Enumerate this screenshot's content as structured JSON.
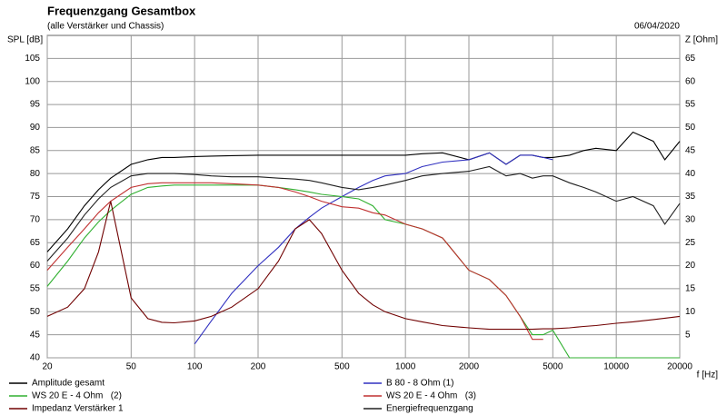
{
  "chart_data": {
    "type": "line",
    "title": "Frequenzgang Gesamtbox",
    "subtitle": "(alle Verstärker und Chassis)",
    "date": "06/04/2020",
    "y_label": "SPL [dB]",
    "y2_label": "Z [Ohm]",
    "x_label": "f [Hz]",
    "log_x": true,
    "grid": true,
    "xlim": [
      20,
      20000
    ],
    "xticks": [
      20,
      50,
      100,
      200,
      500,
      1000,
      2000,
      5000,
      10000,
      20000
    ],
    "ylim": [
      40,
      110
    ],
    "yticks": [
      40,
      45,
      50,
      55,
      60,
      65,
      70,
      75,
      80,
      85,
      90,
      95,
      100,
      105
    ],
    "y2lim": [
      0,
      70
    ],
    "y2ticks": [
      5,
      10,
      15,
      20,
      25,
      30,
      35,
      40,
      45,
      50,
      55,
      60,
      65
    ],
    "x": [
      20,
      25,
      30,
      35,
      40,
      50,
      60,
      70,
      80,
      100,
      120,
      150,
      200,
      250,
      300,
      350,
      400,
      500,
      600,
      700,
      800,
      1000,
      1200,
      1500,
      2000,
      2500,
      3000,
      3500,
      4000,
      4500,
      5000,
      6000,
      7000,
      8000,
      10000,
      12000,
      15000,
      17000,
      20000
    ],
    "series": [
      {
        "name": "Amplitude gesamt",
        "color": "#000000",
        "values": [
          63,
          68,
          73,
          76.5,
          79,
          82,
          83,
          83.5,
          83.5,
          83.7,
          83.8,
          83.9,
          84,
          84,
          84,
          84,
          84,
          84,
          84,
          84,
          84,
          84,
          84.3,
          84.5,
          83,
          84.5,
          82,
          84,
          84,
          83.5,
          83.5,
          84,
          85,
          85.5,
          85,
          89,
          87,
          83,
          87
        ]
      },
      {
        "name": "B 80 - 8 Ohm (1)",
        "color": "#3030c0",
        "values": [
          null,
          null,
          null,
          null,
          null,
          null,
          null,
          null,
          null,
          43,
          48,
          54,
          60,
          64,
          68,
          70.5,
          72.5,
          75,
          77,
          78.5,
          79.5,
          80,
          81.5,
          82.5,
          83,
          84.5,
          82,
          84,
          84,
          83.5,
          83,
          null,
          null,
          null,
          null,
          null,
          null,
          null,
          null
        ]
      },
      {
        "name": "WS 20 E - 4 Ohm   (2)",
        "color": "#30b030",
        "values": [
          55.5,
          61,
          66,
          69.5,
          72,
          75.5,
          77,
          77.3,
          77.5,
          77.5,
          77.5,
          77.5,
          77.5,
          77,
          76.5,
          76,
          75.5,
          75,
          74.5,
          73,
          70,
          69,
          68,
          66,
          59,
          57,
          53.5,
          49,
          45,
          45,
          46,
          40,
          40,
          40,
          40,
          40,
          40,
          40,
          40
        ]
      },
      {
        "name": "WS 20 E - 4 Ohm   (3)",
        "color": "#c03030",
        "values": [
          59,
          64,
          68,
          71.5,
          74,
          77,
          77.8,
          78,
          78,
          78,
          78,
          77.8,
          77.5,
          77,
          76,
          75,
          74,
          72.8,
          72.5,
          71.5,
          71,
          69,
          68,
          66,
          59,
          57,
          53.5,
          49,
          44,
          44,
          null,
          null,
          null,
          null,
          null,
          null,
          null,
          null,
          null
        ]
      },
      {
        "name": "Impedanz Verstärker 1",
        "color": "#700000",
        "axis": "y2",
        "values": [
          9,
          11,
          15,
          23,
          34,
          13,
          8.5,
          7.7,
          7.6,
          8,
          9,
          11,
          15,
          21,
          28,
          30,
          27,
          19,
          14,
          11.5,
          10,
          8.5,
          7.8,
          7,
          6.5,
          6.2,
          6.2,
          6.2,
          6.2,
          6.3,
          6.3,
          6.5,
          6.8,
          7,
          7.5,
          7.8,
          8.3,
          8.6,
          9
        ]
      },
      {
        "name": "Energiefrequenzgang",
        "color": "#202020",
        "values": [
          61,
          66,
          71,
          74.5,
          77,
          79.5,
          80,
          80,
          80,
          79.8,
          79.5,
          79.3,
          79.3,
          79,
          78.8,
          78.5,
          78,
          77,
          76.5,
          77,
          77.5,
          78.5,
          79.5,
          80,
          80.5,
          81.5,
          79.5,
          80,
          79,
          79.5,
          79.5,
          78,
          77,
          76,
          74,
          75,
          73,
          69,
          73.5
        ]
      }
    ]
  }
}
